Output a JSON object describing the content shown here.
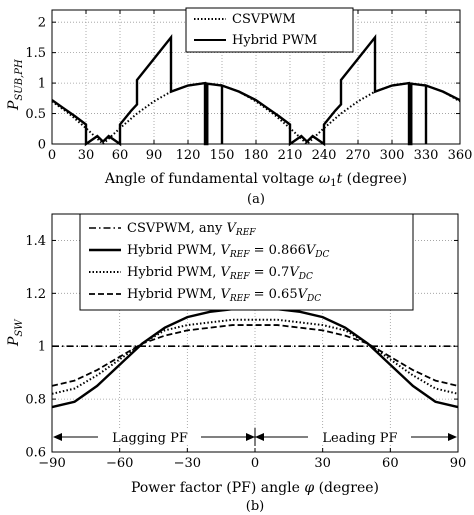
{
  "chart_data": [
    {
      "type": "line",
      "panel_caption": "(a)",
      "ylabel": "P_SUB,PH",
      "ylabel_main": "P",
      "ylabel_sub": "SUB,PH",
      "xlabel": "Angle of fundamental voltage ω₁t (degree)",
      "xlabel_pre": "Angle of fundamental voltage ",
      "xlabel_var": "ω",
      "xlabel_varsub": "1",
      "xlabel_t": "t",
      "xlabel_post": " (degree)",
      "xlim": [
        0,
        360
      ],
      "ylim": [
        0,
        2.2
      ],
      "xticks": [
        0,
        30,
        60,
        90,
        120,
        150,
        180,
        210,
        240,
        270,
        300,
        330,
        360
      ],
      "xtick_labels": [
        "0",
        "30",
        "60",
        "90",
        "120",
        "150",
        "180",
        "210",
        "240",
        "270",
        "300",
        "330",
        "360"
      ],
      "yticks": [
        0,
        0.5,
        1,
        1.5,
        2
      ],
      "ytick_labels": [
        "0",
        "0.5",
        "1",
        "1.5",
        "2"
      ],
      "grid": "x and y, dotted",
      "legend_position": "top-center",
      "series": [
        {
          "name": "CSVPWM",
          "style": "dotted",
          "x": [
            0,
            15,
            30,
            45,
            60,
            75,
            90,
            105,
            120,
            135,
            150,
            165,
            180,
            195,
            210,
            225,
            240,
            255,
            270,
            285,
            300,
            315,
            330,
            345,
            360
          ],
          "y": [
            0.7,
            0.5,
            0.26,
            0.0,
            0.26,
            0.5,
            0.7,
            0.86,
            0.96,
            1.0,
            0.96,
            0.86,
            0.7,
            0.5,
            0.26,
            0.0,
            0.26,
            0.5,
            0.7,
            0.86,
            0.96,
            1.0,
            0.96,
            0.86,
            0.7
          ]
        },
        {
          "name": "Hybrid PWM",
          "style": "solid",
          "x": [
            0,
            10,
            20,
            30,
            30,
            40,
            45,
            50,
            60,
            60,
            70,
            75,
            75,
            90,
            105,
            105,
            120,
            135,
            135,
            135,
            137,
            137,
            150,
            150,
            150,
            165,
            180,
            190,
            200,
            210,
            210,
            220,
            225,
            230,
            240,
            240,
            250,
            255,
            255,
            270,
            285,
            285,
            300,
            315,
            315,
            315,
            317,
            317,
            330,
            330,
            330,
            345,
            360
          ],
          "y": [
            0.72,
            0.59,
            0.46,
            0.32,
            0.0,
            0.13,
            0.04,
            0.13,
            0.0,
            0.32,
            0.55,
            0.65,
            1.05,
            1.4,
            1.75,
            0.86,
            0.96,
            1.0,
            1.0,
            0.0,
            0.0,
            0.99,
            0.96,
            0.0,
            0.96,
            0.86,
            0.72,
            0.59,
            0.46,
            0.32,
            0.0,
            0.13,
            0.04,
            0.13,
            0.0,
            0.32,
            0.55,
            0.65,
            1.05,
            1.4,
            1.75,
            0.86,
            0.96,
            1.0,
            1.0,
            0.0,
            0.0,
            0.99,
            0.96,
            0.0,
            0.96,
            0.86,
            0.72
          ]
        }
      ]
    },
    {
      "type": "line",
      "panel_caption": "(b)",
      "ylabel": "P_SW",
      "ylabel_main": "P",
      "ylabel_sub": "SW",
      "xlabel": "Power factor (PF) angle φ (degree)",
      "xlabel_pre": "Power factor (PF) angle ",
      "xlabel_var": "φ",
      "xlabel_post": " (degree)",
      "xlim": [
        -90,
        90
      ],
      "ylim": [
        0.6,
        1.5
      ],
      "xticks": [
        -90,
        -60,
        -30,
        0,
        30,
        60,
        90
      ],
      "xtick_labels": [
        "−90",
        "−60",
        "−30",
        "0",
        "30",
        "60",
        "90"
      ],
      "yticks": [
        0.6,
        0.8,
        1.0,
        1.2,
        1.4
      ],
      "ytick_labels": [
        "0.6",
        "0.8",
        "1",
        "1.2",
        "1.4"
      ],
      "grid": "x and y, dotted",
      "legend_position": "top-left",
      "annotations": {
        "lagging": "Lagging PF",
        "leading": "Leading PF"
      },
      "series": [
        {
          "name": "CSVPWM, any V_REF",
          "legend_pre": "CSVPWM, any ",
          "legend_sym": "V",
          "legend_sub": "REF",
          "legend_post": "",
          "style": "dashdot",
          "x": [
            -90,
            90
          ],
          "y": [
            1.0,
            1.0
          ]
        },
        {
          "name": "Hybrid PWM, V_REF = 0.866V_DC",
          "legend_pre": "Hybrid PWM, ",
          "legend_sym": "V",
          "legend_sub": "REF",
          "legend_post": " = 0.866",
          "legend_sym2": "V",
          "legend_sub2": "DC",
          "style": "solid",
          "x": [
            -90,
            -80,
            -70,
            -60,
            -50,
            -40,
            -30,
            -20,
            -10,
            0,
            10,
            20,
            30,
            40,
            50,
            60,
            70,
            80,
            90
          ],
          "y": [
            0.77,
            0.79,
            0.85,
            0.93,
            1.01,
            1.07,
            1.11,
            1.13,
            1.14,
            1.14,
            1.14,
            1.13,
            1.11,
            1.07,
            1.01,
            0.93,
            0.85,
            0.79,
            0.77
          ]
        },
        {
          "name": "Hybrid PWM, V_REF = 0.7V_DC",
          "legend_pre": "Hybrid PWM, ",
          "legend_sym": "V",
          "legend_sub": "REF",
          "legend_post": " = 0.7",
          "legend_sym2": "V",
          "legend_sub2": "DC",
          "style": "dotted",
          "x": [
            -90,
            -80,
            -70,
            -60,
            -50,
            -40,
            -30,
            -20,
            -10,
            0,
            10,
            20,
            30,
            40,
            50,
            60,
            70,
            80,
            90
          ],
          "y": [
            0.82,
            0.84,
            0.89,
            0.95,
            1.01,
            1.06,
            1.08,
            1.09,
            1.1,
            1.1,
            1.1,
            1.09,
            1.08,
            1.06,
            1.01,
            0.95,
            0.89,
            0.84,
            0.82
          ]
        },
        {
          "name": "Hybrid PWM, V_REF = 0.65V_DC",
          "legend_pre": "Hybrid PWM, ",
          "legend_sym": "V",
          "legend_sub": "REF",
          "legend_post": " = 0.65",
          "legend_sym2": "V",
          "legend_sub2": "DC",
          "style": "dashed",
          "x": [
            -90,
            -80,
            -70,
            -60,
            -50,
            -40,
            -30,
            -20,
            -10,
            0,
            10,
            20,
            30,
            40,
            50,
            60,
            70,
            80,
            90
          ],
          "y": [
            0.85,
            0.87,
            0.91,
            0.96,
            1.01,
            1.04,
            1.06,
            1.07,
            1.08,
            1.08,
            1.08,
            1.07,
            1.06,
            1.04,
            1.01,
            0.96,
            0.91,
            0.87,
            0.85
          ]
        }
      ]
    }
  ],
  "styles": {
    "line_color": "#000000",
    "grid_color": "#9a9a9a",
    "background": "#ffffff"
  }
}
